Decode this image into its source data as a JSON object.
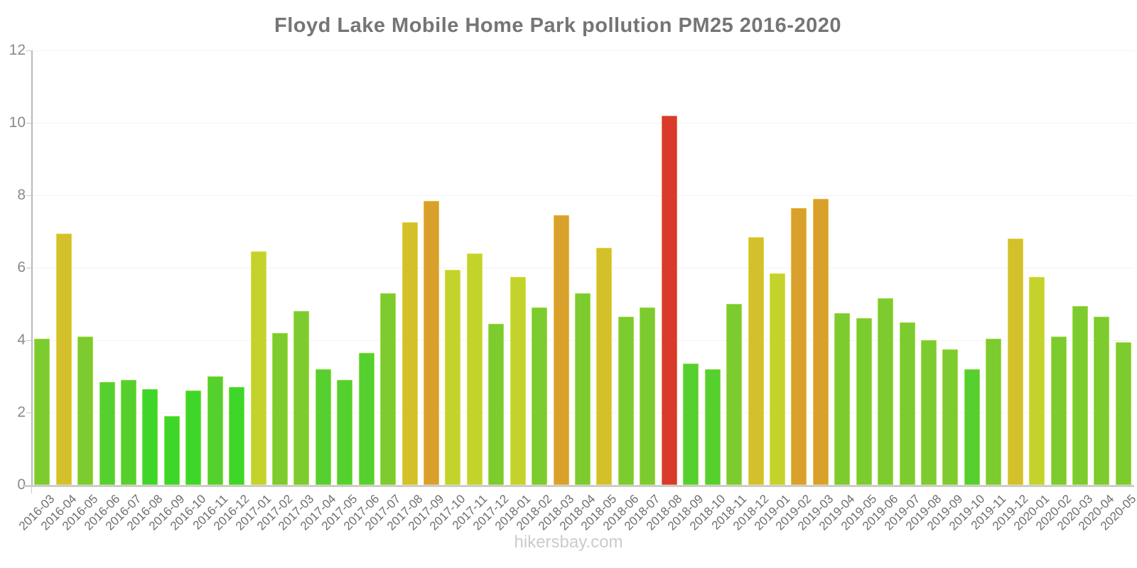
{
  "title": "Floyd Lake Mobile Home Park pollution PM25 2016-2020",
  "watermark": "hikersbay.com",
  "chart_data": {
    "type": "bar",
    "title": "Floyd Lake Mobile Home Park pollution PM25 2016-2020",
    "xlabel": "",
    "ylabel": "",
    "ylim": [
      0,
      12
    ],
    "yticks": [
      0,
      2,
      4,
      6,
      8,
      10,
      12
    ],
    "grid": true,
    "legend": "none",
    "categories": [
      "2016-03",
      "2016-04",
      "2016-05",
      "2016-06",
      "2016-07",
      "2016-08",
      "2016-09",
      "2016-10",
      "2016-11",
      "2016-12",
      "2017-01",
      "2017-02",
      "2017-03",
      "2017-04",
      "2017-05",
      "2017-06",
      "2017-07",
      "2017-08",
      "2017-09",
      "2017-10",
      "2017-11",
      "2017-12",
      "2018-01",
      "2018-02",
      "2018-03",
      "2018-04",
      "2018-05",
      "2018-06",
      "2018-07",
      "2018-08",
      "2018-09",
      "2018-10",
      "2018-11",
      "2018-12",
      "2019-01",
      "2019-02",
      "2019-03",
      "2019-04",
      "2019-05",
      "2019-06",
      "2019-07",
      "2019-08",
      "2019-09",
      "2019-10",
      "2019-11",
      "2019-12",
      "2020-01",
      "2020-02",
      "2020-03",
      "2020-04",
      "2020-05"
    ],
    "values": [
      4.05,
      6.95,
      4.1,
      2.85,
      2.9,
      2.65,
      1.9,
      2.6,
      3.0,
      2.7,
      6.45,
      4.2,
      4.8,
      3.2,
      2.9,
      3.65,
      5.3,
      7.25,
      7.85,
      5.95,
      6.4,
      4.45,
      5.75,
      4.9,
      7.45,
      5.3,
      6.55,
      4.65,
      4.9,
      10.2,
      3.35,
      3.2,
      5.0,
      6.85,
      5.85,
      7.65,
      7.9,
      4.75,
      4.6,
      5.15,
      4.5,
      4.0,
      3.75,
      3.2,
      4.05,
      6.8,
      5.75,
      4.1,
      4.95,
      4.65,
      3.95
    ],
    "color_scale": {
      "description": "bar color depends on PM25 value",
      "thresholds": [
        {
          "max": 2.8,
          "color": "#3fd62a"
        },
        {
          "max": 3.7,
          "color": "#55d02e"
        },
        {
          "max": 5.45,
          "color": "#7ccb2f"
        },
        {
          "max": 6.5,
          "color": "#c4d32c"
        },
        {
          "max": 7.35,
          "color": "#d4c02a"
        },
        {
          "max": 8.5,
          "color": "#d9a02b"
        },
        {
          "max": 99,
          "color": "#d93a2b"
        }
      ]
    }
  }
}
